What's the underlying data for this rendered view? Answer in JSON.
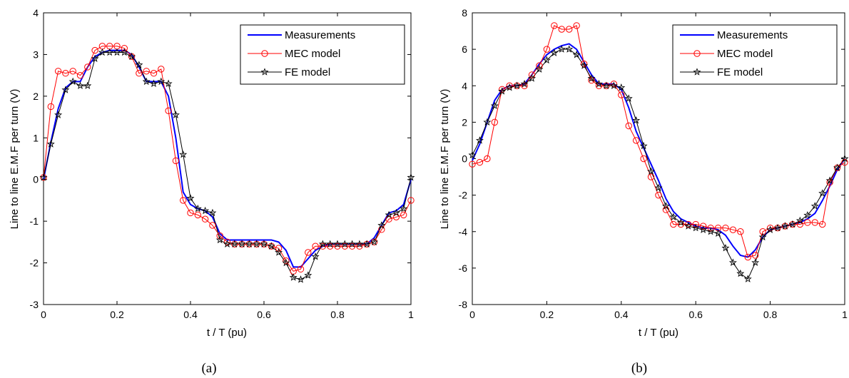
{
  "chart_data": [
    {
      "type": "line",
      "xlabel": "t / T (pu)",
      "ylabel": "Line to line E.M.F per turn (V)",
      "caption": "(a)",
      "xlim": [
        0,
        1
      ],
      "ylim": [
        -3,
        4
      ],
      "xticks": [
        0,
        0.2,
        0.4,
        0.6,
        0.8,
        1
      ],
      "xtick_labels": [
        "0",
        "0.2",
        "0.4",
        "0.6",
        "0.8",
        "1"
      ],
      "yticks": [
        -3,
        -2,
        -1,
        0,
        1,
        2,
        3,
        4
      ],
      "ytick_labels": [
        "-3",
        "-2",
        "-1",
        "0",
        "1",
        "2",
        "3",
        "4"
      ],
      "legend_position": "top-right",
      "series": [
        {
          "name": "Measurements",
          "color": "#0000ff",
          "marker": "none",
          "x": [
            0,
            0.02,
            0.04,
            0.06,
            0.08,
            0.1,
            0.12,
            0.14,
            0.16,
            0.18,
            0.2,
            0.22,
            0.24,
            0.26,
            0.28,
            0.3,
            0.32,
            0.34,
            0.36,
            0.38,
            0.4,
            0.42,
            0.44,
            0.46,
            0.48,
            0.5,
            0.52,
            0.54,
            0.56,
            0.58,
            0.6,
            0.62,
            0.64,
            0.66,
            0.68,
            0.7,
            0.72,
            0.74,
            0.76,
            0.78,
            0.8,
            0.82,
            0.84,
            0.86,
            0.88,
            0.9,
            0.92,
            0.94,
            0.96,
            0.98,
            1.0
          ],
          "y": [
            0.0,
            0.9,
            1.7,
            2.2,
            2.35,
            2.35,
            2.7,
            2.95,
            3.05,
            3.1,
            3.1,
            3.1,
            3.0,
            2.7,
            2.35,
            2.35,
            2.35,
            2.0,
            1.0,
            -0.3,
            -0.6,
            -0.7,
            -0.75,
            -0.9,
            -1.3,
            -1.45,
            -1.45,
            -1.45,
            -1.45,
            -1.45,
            -1.45,
            -1.45,
            -1.5,
            -1.7,
            -2.1,
            -2.1,
            -1.9,
            -1.7,
            -1.6,
            -1.55,
            -1.55,
            -1.55,
            -1.55,
            -1.55,
            -1.55,
            -1.4,
            -1.1,
            -0.8,
            -0.75,
            -0.6,
            0.0
          ]
        },
        {
          "name": "MEC model",
          "color": "#ff0000",
          "marker": "circle",
          "x": [
            0.0,
            0.02,
            0.04,
            0.06,
            0.08,
            0.1,
            0.12,
            0.14,
            0.16,
            0.18,
            0.2,
            0.22,
            0.24,
            0.26,
            0.28,
            0.3,
            0.32,
            0.34,
            0.36,
            0.38,
            0.4,
            0.42,
            0.44,
            0.46,
            0.48,
            0.5,
            0.52,
            0.54,
            0.56,
            0.58,
            0.6,
            0.62,
            0.64,
            0.66,
            0.68,
            0.7,
            0.72,
            0.74,
            0.76,
            0.78,
            0.8,
            0.82,
            0.84,
            0.86,
            0.88,
            0.9,
            0.92,
            0.94,
            0.96,
            0.98,
            1.0
          ],
          "y": [
            0.05,
            1.75,
            2.6,
            2.55,
            2.6,
            2.5,
            2.7,
            3.1,
            3.2,
            3.2,
            3.2,
            3.15,
            2.95,
            2.55,
            2.6,
            2.55,
            2.65,
            1.65,
            0.45,
            -0.5,
            -0.8,
            -0.85,
            -0.95,
            -1.1,
            -1.35,
            -1.5,
            -1.55,
            -1.55,
            -1.55,
            -1.55,
            -1.55,
            -1.6,
            -1.65,
            -1.95,
            -2.2,
            -2.15,
            -1.75,
            -1.6,
            -1.6,
            -1.6,
            -1.6,
            -1.6,
            -1.6,
            -1.6,
            -1.55,
            -1.5,
            -1.2,
            -0.95,
            -0.9,
            -0.85,
            -0.5
          ]
        },
        {
          "name": "FE model",
          "color": "#000000",
          "marker": "star",
          "x": [
            0.0,
            0.02,
            0.04,
            0.06,
            0.08,
            0.1,
            0.12,
            0.14,
            0.16,
            0.18,
            0.2,
            0.22,
            0.24,
            0.26,
            0.28,
            0.3,
            0.32,
            0.34,
            0.36,
            0.38,
            0.4,
            0.42,
            0.44,
            0.46,
            0.48,
            0.5,
            0.52,
            0.54,
            0.56,
            0.58,
            0.6,
            0.62,
            0.64,
            0.66,
            0.68,
            0.7,
            0.72,
            0.74,
            0.76,
            0.78,
            0.8,
            0.82,
            0.84,
            0.86,
            0.88,
            0.9,
            0.92,
            0.94,
            0.96,
            0.98,
            1.0
          ],
          "y": [
            0.05,
            0.85,
            1.55,
            2.15,
            2.35,
            2.25,
            2.25,
            2.9,
            3.05,
            3.05,
            3.05,
            3.05,
            2.95,
            2.75,
            2.35,
            2.3,
            2.35,
            2.3,
            1.55,
            0.6,
            -0.45,
            -0.7,
            -0.75,
            -0.8,
            -1.45,
            -1.55,
            -1.55,
            -1.55,
            -1.55,
            -1.55,
            -1.55,
            -1.6,
            -1.75,
            -2.0,
            -2.35,
            -2.4,
            -2.3,
            -1.85,
            -1.55,
            -1.55,
            -1.55,
            -1.55,
            -1.55,
            -1.55,
            -1.55,
            -1.5,
            -1.1,
            -0.85,
            -0.8,
            -0.7,
            0.05
          ]
        }
      ]
    },
    {
      "type": "line",
      "xlabel": "t / T (pu)",
      "ylabel": "Line to line E.M.F per turn (V)",
      "caption": "(b)",
      "xlim": [
        0,
        1
      ],
      "ylim": [
        -8,
        8
      ],
      "xticks": [
        0,
        0.2,
        0.4,
        0.6,
        0.8,
        1
      ],
      "xtick_labels": [
        "0",
        "0.2",
        "0.4",
        "0.6",
        "0.8",
        "1"
      ],
      "yticks": [
        -8,
        -6,
        -4,
        -2,
        0,
        2,
        4,
        6,
        8
      ],
      "ytick_labels": [
        "-8",
        "-6",
        "-4",
        "-2",
        "0",
        "2",
        "4",
        "6",
        "8"
      ],
      "legend_position": "top-right",
      "series": [
        {
          "name": "Measurements",
          "color": "#0000ff",
          "marker": "none",
          "x": [
            0,
            0.02,
            0.04,
            0.06,
            0.08,
            0.1,
            0.12,
            0.14,
            0.16,
            0.18,
            0.2,
            0.22,
            0.24,
            0.26,
            0.28,
            0.3,
            0.32,
            0.34,
            0.36,
            0.38,
            0.4,
            0.42,
            0.44,
            0.46,
            0.48,
            0.5,
            0.52,
            0.54,
            0.56,
            0.58,
            0.6,
            0.62,
            0.64,
            0.66,
            0.68,
            0.7,
            0.72,
            0.74,
            0.76,
            0.78,
            0.8,
            0.82,
            0.84,
            0.86,
            0.88,
            0.9,
            0.92,
            0.94,
            0.96,
            0.98,
            1.0
          ],
          "y": [
            -0.1,
            0.8,
            2.0,
            3.2,
            3.8,
            4.0,
            4.0,
            4.1,
            4.6,
            5.2,
            5.7,
            6.0,
            6.2,
            6.3,
            6.0,
            5.3,
            4.6,
            4.1,
            4.1,
            4.1,
            3.8,
            2.8,
            1.5,
            0.6,
            -0.3,
            -1.2,
            -2.2,
            -2.9,
            -3.3,
            -3.5,
            -3.7,
            -3.8,
            -3.8,
            -3.9,
            -4.2,
            -4.8,
            -5.3,
            -5.4,
            -5.0,
            -4.3,
            -3.9,
            -3.8,
            -3.7,
            -3.6,
            -3.5,
            -3.3,
            -3.0,
            -2.3,
            -1.5,
            -0.6,
            0.0
          ]
        },
        {
          "name": "MEC model",
          "color": "#ff0000",
          "marker": "circle",
          "x": [
            0.0,
            0.02,
            0.04,
            0.06,
            0.08,
            0.1,
            0.12,
            0.14,
            0.16,
            0.18,
            0.2,
            0.22,
            0.24,
            0.26,
            0.28,
            0.3,
            0.32,
            0.34,
            0.36,
            0.38,
            0.4,
            0.42,
            0.44,
            0.46,
            0.48,
            0.5,
            0.52,
            0.54,
            0.56,
            0.58,
            0.6,
            0.62,
            0.64,
            0.66,
            0.68,
            0.7,
            0.72,
            0.74,
            0.76,
            0.78,
            0.8,
            0.82,
            0.84,
            0.86,
            0.88,
            0.9,
            0.92,
            0.94,
            0.96,
            0.98,
            1.0
          ],
          "y": [
            -0.3,
            -0.2,
            0.0,
            2.0,
            3.8,
            4.0,
            4.0,
            4.0,
            4.6,
            5.1,
            6.0,
            7.3,
            7.1,
            7.1,
            7.3,
            5.2,
            4.3,
            4.0,
            4.0,
            4.1,
            3.5,
            1.8,
            1.0,
            0.0,
            -1.0,
            -2.0,
            -2.8,
            -3.6,
            -3.6,
            -3.6,
            -3.6,
            -3.7,
            -3.8,
            -3.8,
            -3.8,
            -3.9,
            -4.0,
            -5.4,
            -5.3,
            -4.0,
            -3.8,
            -3.8,
            -3.7,
            -3.6,
            -3.6,
            -3.5,
            -3.5,
            -3.6,
            -1.3,
            -0.5,
            -0.2
          ]
        },
        {
          "name": "FE model",
          "color": "#000000",
          "marker": "star",
          "x": [
            0.0,
            0.02,
            0.04,
            0.06,
            0.08,
            0.1,
            0.12,
            0.14,
            0.16,
            0.18,
            0.2,
            0.22,
            0.24,
            0.26,
            0.28,
            0.3,
            0.32,
            0.34,
            0.36,
            0.38,
            0.4,
            0.42,
            0.44,
            0.46,
            0.48,
            0.5,
            0.52,
            0.54,
            0.56,
            0.58,
            0.6,
            0.62,
            0.64,
            0.66,
            0.68,
            0.7,
            0.72,
            0.74,
            0.76,
            0.78,
            0.8,
            0.82,
            0.84,
            0.86,
            0.88,
            0.9,
            0.92,
            0.94,
            0.96,
            0.98,
            1.0
          ],
          "y": [
            0.2,
            1.0,
            2.0,
            2.9,
            3.7,
            3.9,
            4.0,
            4.1,
            4.4,
            4.9,
            5.4,
            5.8,
            6.0,
            6.0,
            5.7,
            5.1,
            4.4,
            4.1,
            4.0,
            4.0,
            3.9,
            3.3,
            2.1,
            0.7,
            -0.7,
            -1.6,
            -2.6,
            -3.2,
            -3.5,
            -3.7,
            -3.8,
            -3.9,
            -4.0,
            -4.1,
            -4.9,
            -5.7,
            -6.3,
            -6.6,
            -5.7,
            -4.3,
            -3.9,
            -3.8,
            -3.7,
            -3.6,
            -3.4,
            -3.1,
            -2.6,
            -1.9,
            -1.2,
            -0.5,
            0.0
          ]
        }
      ]
    }
  ]
}
